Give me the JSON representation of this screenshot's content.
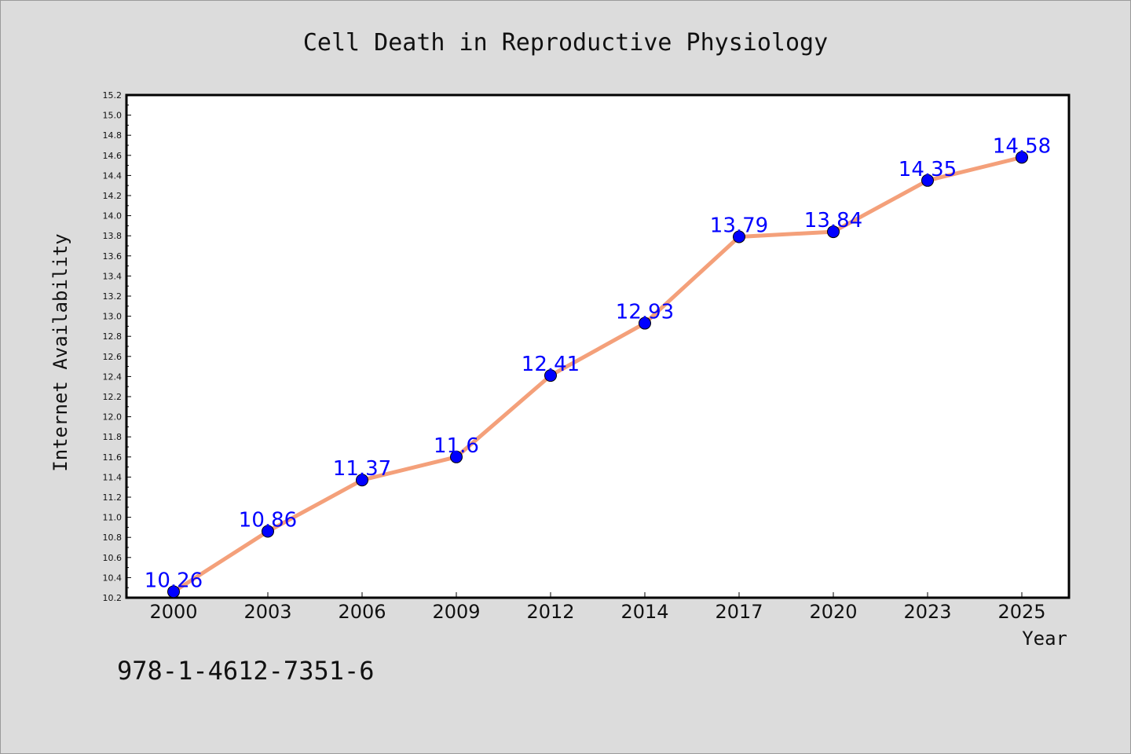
{
  "chart_data": {
    "type": "line",
    "title": "Cell Death in Reproductive Physiology",
    "xlabel": "Year",
    "ylabel": "Internet Availability",
    "categories": [
      "2000",
      "2003",
      "2006",
      "2009",
      "2012",
      "2014",
      "2017",
      "2020",
      "2023",
      "2025"
    ],
    "series": [
      {
        "values": [
          10.26,
          10.86,
          11.37,
          11.6,
          12.41,
          12.93,
          13.79,
          13.84,
          14.35,
          14.58
        ],
        "line_color": "#f4a07a",
        "marker_color": "#0000ff"
      }
    ],
    "data_labels": [
      "10.26",
      "10.86",
      "11.37",
      "11.6",
      "12.41",
      "12.93",
      "13.79",
      "13.84",
      "14.35",
      "14.58"
    ],
    "ylim": [
      10.2,
      15.2
    ],
    "y_ticks": [
      "10.2",
      "10.4",
      "10.6",
      "10.8",
      "11.0",
      "11.2",
      "11.4",
      "11.6",
      "11.8",
      "12.0",
      "12.2",
      "12.4",
      "12.6",
      "12.8",
      "13.0",
      "13.2",
      "13.4",
      "13.6",
      "13.8",
      "14.0",
      "14.2",
      "14.4",
      "14.6",
      "14.8",
      "15.0",
      "15.2"
    ],
    "grid": false,
    "legend": "none",
    "label_color": "#0000ff"
  },
  "footer": {
    "isbn": "978-1-4612-7351-6"
  }
}
